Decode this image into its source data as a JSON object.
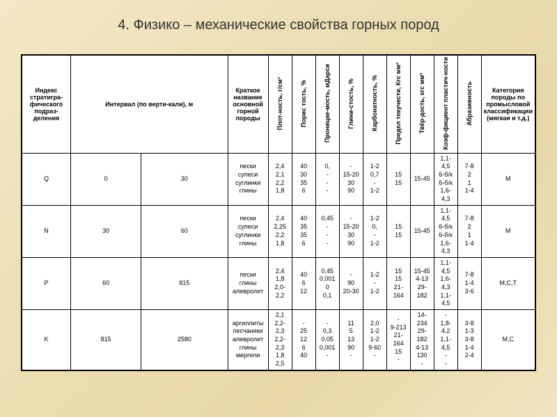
{
  "title": "4. Физико – механические свойства горных пород",
  "headers": {
    "h1": "Индекс стратигра-фического подраз-деления",
    "h2": "Интервал (по верти-кали), м",
    "h3": "Краткое название основной горной породы",
    "h4": "Плот-ность, г/см³",
    "h5": "Порис тость, %",
    "h6": "Проницае-мость, мДарси",
    "h7": "Глини-стость, %",
    "h8": "Карбонатность, %",
    "h9": "Предел текучести, Кгс мм²",
    "h10": "Твёр-дость, кгс мм²",
    "h11": "Коэф-фициент пластич-ности",
    "h12": "Абразивность",
    "h13": "Категория породы по промысловой классификации (мягкая и т.д.)"
  },
  "rows": [
    {
      "idx": "Q",
      "i1": "0",
      "i2": "30",
      "rock": [
        "пески",
        "супеси",
        "суглинки",
        "глины"
      ],
      "c4": [
        "2,4",
        "2,1",
        "2,2",
        "1,8"
      ],
      "c5": [
        "40",
        "30",
        "35",
        "6"
      ],
      "c6": [
        "0,",
        "-",
        "-",
        "-"
      ],
      "c7": [
        "-",
        "15-20",
        "30",
        "90"
      ],
      "c8": [
        "1-2",
        "0,7",
        "-",
        "1-2"
      ],
      "c9": [
        "15",
        "",
        "",
        "15"
      ],
      "c10": [
        "",
        "15-45",
        "",
        ""
      ],
      "c11": [
        "1,1-4,5",
        "6-б/к",
        "6-б/к",
        "1,6-4,3"
      ],
      "c12": [
        "7-8",
        "2",
        "1",
        "1-4"
      ],
      "c13": "М"
    },
    {
      "idx": "N",
      "i1": "30",
      "i2": "60",
      "rock": [
        "пески",
        "супеси",
        "суглинки",
        "глины"
      ],
      "c4": [
        "2,4",
        "2,25",
        "2,2",
        "1,8"
      ],
      "c5": [
        "40",
        "35",
        "35",
        "6"
      ],
      "c6": [
        "0,45",
        "-",
        "-",
        "-"
      ],
      "c7": [
        "-",
        "15-20",
        "30",
        "90"
      ],
      "c8": [
        "1-2",
        "0,",
        "-",
        "1-2"
      ],
      "c9": [
        "15",
        "",
        "",
        "15"
      ],
      "c10": [
        "",
        "15-45",
        "",
        ""
      ],
      "c11": [
        "1,1-4,5",
        "6-б/к",
        "6-б/к",
        "1,6-4,3"
      ],
      "c12": [
        "7-8",
        "2",
        "1",
        "1-4"
      ],
      "c13": "М"
    },
    {
      "idx": "P",
      "i1": "60",
      "i2": "815",
      "rock": [
        "пески",
        "глины",
        "алевролит"
      ],
      "c4": [
        "2,4",
        "1,8",
        "2,0-",
        "2,2"
      ],
      "c5": [
        "40",
        "6",
        "12"
      ],
      "c6": [
        "0,45",
        "0,001 0",
        "0,1"
      ],
      "c7": [
        "-",
        "90",
        "20-30"
      ],
      "c8": [
        "1-2",
        "-",
        "1-2"
      ],
      "c9": [
        "15",
        "15",
        "21-164"
      ],
      "c10": [
        "15-45",
        "4-13",
        "29-182"
      ],
      "c11": [
        "1,1-4,5",
        "1,6-4,3",
        "1,1-4,5"
      ],
      "c12": [
        "7-8",
        "1-4",
        "3-6"
      ],
      "c13": "М,С,Т"
    },
    {
      "idx": "K",
      "i1": "815",
      "i2": "2580",
      "rock": [
        "аргиллиты",
        "песчаники",
        "алевролит",
        "глины",
        "мергели"
      ],
      "c4": [
        "2,1",
        "2,2-",
        "2,3",
        "2,2-",
        "2,3",
        "1,8",
        "2,5"
      ],
      "c5": [
        "-",
        "25",
        "12",
        "6",
        "40"
      ],
      "c6": [
        "-",
        "0,3",
        "0,05",
        "0,001",
        "-"
      ],
      "c7": [
        "11",
        "5",
        "13",
        "90",
        "-"
      ],
      "c8": [
        "2,0",
        "1-2",
        "1-2",
        "9-60",
        "-"
      ],
      "c9": [
        "-",
        "9-213",
        "21-164",
        "15",
        "-"
      ],
      "c10": [
        "14-234",
        "29-182",
        "4-13",
        "130",
        "-"
      ],
      "c11": [
        "-",
        "1,8-4,2",
        "1,1-4,5",
        "-",
        "-"
      ],
      "c12": [
        "3-8",
        "1-3",
        "3-8",
        "1-4",
        "2-4"
      ],
      "c13": "М,С"
    }
  ],
  "colors": {
    "bg_start": "#f5e8c8",
    "bg_end": "#e8d8a8",
    "border": "#000000",
    "text": "#333333"
  }
}
